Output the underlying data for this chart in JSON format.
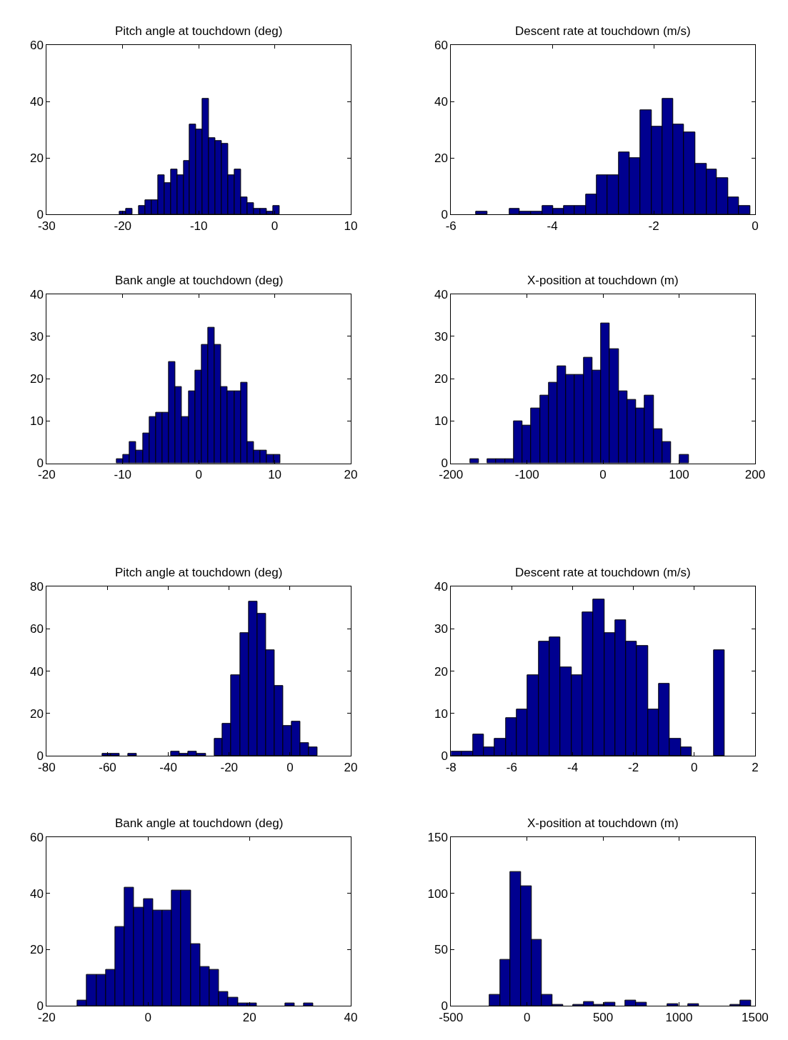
{
  "chart_data": [
    {
      "type": "histogram",
      "title": "Pitch angle at touchdown (deg)",
      "color": "#00008f",
      "bins": [
        -20.4,
        -19.56,
        -18.72,
        -17.88,
        -17.04,
        -16.2,
        -15.36,
        -14.52,
        -13.68,
        -12.84,
        -12.0,
        -11.16,
        -10.32,
        -9.48,
        -8.64,
        -7.8,
        -6.96,
        -6.12,
        -5.28,
        -4.44,
        -3.6,
        -2.76,
        -1.92,
        -1.08,
        -0.24,
        0.6
      ],
      "values": [
        1,
        2,
        0,
        3,
        5,
        5,
        14,
        11,
        16,
        14,
        19,
        32,
        30,
        41,
        27,
        26,
        25,
        14,
        16,
        6,
        4,
        2,
        2,
        1,
        3
      ],
      "xlim": [
        -30,
        10
      ],
      "xticks": [
        -30,
        -20,
        -10,
        0,
        10
      ],
      "ylim": [
        0,
        60
      ],
      "yticks": [
        0,
        20,
        40,
        60
      ]
    },
    {
      "type": "histogram",
      "title": "Descent rate at touchdown (m/s)",
      "color": "#00008f",
      "bins": [
        -5.5,
        -5.28,
        -4.85,
        -4.64,
        -4.42,
        -4.2,
        -3.99,
        -3.77,
        -3.56,
        -3.34,
        -3.12,
        -2.91,
        -2.69,
        -2.48,
        -2.26,
        -2.04,
        -1.83,
        -1.61,
        -1.4,
        -1.18,
        -0.96,
        -0.75,
        -0.53,
        -0.32,
        -0.1
      ],
      "values": [
        1,
        0,
        2,
        1,
        1,
        3,
        2,
        3,
        3,
        7,
        14,
        14,
        22,
        20,
        37,
        31,
        41,
        32,
        29,
        18,
        16,
        13,
        6,
        3
      ],
      "xlim": [
        -6,
        0
      ],
      "xticks": [
        -6,
        -4,
        -2,
        0
      ],
      "ylim": [
        0,
        60
      ],
      "yticks": [
        0,
        20,
        40,
        60
      ]
    },
    {
      "type": "histogram",
      "title": "Bank angle at touchdown (deg)",
      "color": "#00008f",
      "bins": [
        -10.8,
        -9.94,
        -9.08,
        -8.22,
        -7.36,
        -6.5,
        -5.64,
        -4.78,
        -3.92,
        -3.06,
        -2.2,
        -1.34,
        -0.48,
        0.38,
        1.24,
        2.1,
        2.96,
        3.82,
        4.68,
        5.54,
        6.4,
        7.26,
        8.12,
        8.98,
        9.84,
        10.7
      ],
      "values": [
        1,
        2,
        5,
        3,
        7,
        11,
        12,
        12,
        24,
        18,
        11,
        17,
        22,
        28,
        32,
        28,
        18,
        17,
        17,
        19,
        5,
        3,
        3,
        2,
        2
      ],
      "xlim": [
        -20,
        20
      ],
      "xticks": [
        -20,
        -10,
        0,
        10,
        20
      ],
      "ylim": [
        0,
        40
      ],
      "yticks": [
        0,
        10,
        20,
        30,
        40
      ]
    },
    {
      "type": "histogram",
      "title": "X-position at touchdown (m)",
      "color": "#00008f",
      "bins": [
        -175,
        -163.5,
        -152,
        -140.5,
        -129,
        -117.5,
        -106,
        -94.5,
        -83,
        -71.5,
        -60,
        -48.5,
        -37,
        -25.5,
        -14,
        -2.5,
        9,
        20.5,
        32,
        43.5,
        55,
        66.5,
        78,
        89.5,
        101,
        112.5
      ],
      "values": [
        1,
        0,
        1,
        1,
        1,
        10,
        9,
        13,
        16,
        19,
        23,
        21,
        21,
        25,
        22,
        33,
        27,
        17,
        15,
        13,
        16,
        8,
        5,
        0,
        2
      ],
      "xlim": [
        -200,
        200
      ],
      "xticks": [
        -200,
        -100,
        0,
        100,
        200
      ],
      "ylim": [
        0,
        40
      ],
      "yticks": [
        0,
        10,
        20,
        30,
        40
      ]
    },
    {
      "type": "histogram",
      "title": "Pitch angle at touchdown (deg)",
      "color": "#00008f",
      "bins": [
        -61.7,
        -58.9,
        -56.0,
        -53.2,
        -50.4,
        -39.1,
        -36.2,
        -33.4,
        -30.6,
        -27.7,
        -24.9,
        -22.1,
        -19.3,
        -16.4,
        -13.6,
        -10.8,
        -7.9,
        -5.1,
        -2.3,
        0.6,
        3.4,
        6.2,
        9.1
      ],
      "values": [
        1,
        1,
        0,
        1,
        0,
        2,
        1,
        2,
        1,
        0,
        8,
        15,
        38,
        58,
        73,
        67,
        50,
        33,
        14,
        16,
        6,
        4
      ],
      "xlim": [
        -80,
        20
      ],
      "xticks": [
        -80,
        -60,
        -40,
        -20,
        0,
        20
      ],
      "ylim": [
        0,
        80
      ],
      "yticks": [
        0,
        20,
        40,
        60,
        80
      ]
    },
    {
      "type": "histogram",
      "title": "Descent rate at touchdown (m/s)",
      "color": "#00008f",
      "bins": [
        -8,
        -7.64,
        -7.28,
        -6.92,
        -6.56,
        -6.2,
        -5.84,
        -5.48,
        -5.12,
        -4.76,
        -4.4,
        -4.04,
        -3.68,
        -3.32,
        -2.96,
        -2.6,
        -2.24,
        -1.88,
        -1.52,
        -1.16,
        -0.8,
        -0.44,
        -0.08,
        0.64,
        1.0
      ],
      "values": [
        1,
        1,
        5,
        2,
        4,
        9,
        11,
        19,
        27,
        28,
        21,
        19,
        34,
        37,
        29,
        32,
        27,
        26,
        11,
        17,
        4,
        2,
        0,
        25
      ],
      "xlim": [
        -8,
        2
      ],
      "xticks": [
        -8,
        -6,
        -4,
        -2,
        0,
        2
      ],
      "ylim": [
        0,
        40
      ],
      "yticks": [
        0,
        10,
        20,
        30,
        40
      ]
    },
    {
      "type": "histogram",
      "title": "Bank angle at touchdown (deg)",
      "color": "#00008f",
      "bins": [
        -13.9,
        -12.04,
        -10.18,
        -8.32,
        -6.46,
        -4.6,
        -2.74,
        -0.88,
        0.98,
        2.84,
        4.7,
        6.56,
        8.42,
        10.28,
        12.14,
        14.0,
        15.86,
        17.72,
        19.58,
        21.44,
        27.02,
        28.88,
        30.74,
        32.6
      ],
      "values": [
        2,
        11,
        11,
        13,
        28,
        42,
        35,
        38,
        34,
        34,
        41,
        41,
        22,
        14,
        13,
        5,
        3,
        1,
        1,
        0,
        1,
        0,
        1
      ],
      "xlim": [
        -20,
        40
      ],
      "xticks": [
        -20,
        0,
        20,
        40
      ],
      "ylim": [
        0,
        60
      ],
      "yticks": [
        0,
        20,
        40,
        60
      ]
    },
    {
      "type": "histogram",
      "title": "X-position at touchdown (m)",
      "color": "#00008f",
      "bins": [
        -246,
        -177.2,
        -108.4,
        -39.6,
        29.2,
        98,
        166.8,
        235.6,
        304.4,
        373.2,
        442,
        510.8,
        579.6,
        648.4,
        717.2,
        786,
        923.6,
        992.4,
        1061.2,
        1130,
        1336.4,
        1405.2,
        1474
      ],
      "values": [
        10,
        41,
        119,
        106,
        59,
        10,
        1,
        0,
        1,
        4,
        1,
        3,
        0,
        5,
        3,
        0,
        2,
        0,
        2,
        0,
        1,
        5
      ],
      "xlim": [
        -500,
        1500
      ],
      "xticks": [
        -500,
        0,
        500,
        1000,
        1500
      ],
      "ylim": [
        0,
        150
      ],
      "yticks": [
        0,
        50,
        100,
        150
      ]
    }
  ]
}
